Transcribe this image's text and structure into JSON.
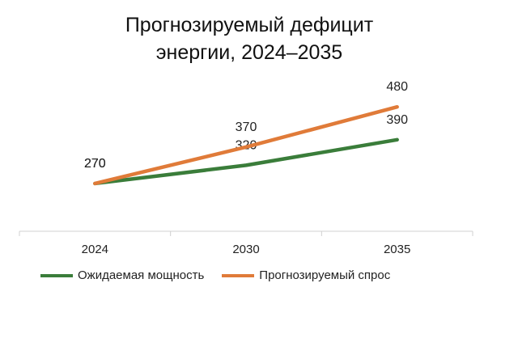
{
  "chart_data": {
    "type": "line",
    "title_line1": "Прогнозируемый дефицит",
    "title_line2": "энергии, 2024–2035",
    "categories": [
      "2024",
      "2030",
      "2035"
    ],
    "series": [
      {
        "name": "Ожидаемая мощность",
        "values": [
          270,
          320,
          390
        ],
        "color": "#3a7d3a"
      },
      {
        "name": "Прогнозируемый спрос",
        "values": [
          270,
          370,
          480
        ],
        "color": "#e07b39"
      }
    ],
    "xlabel": "",
    "ylabel": "",
    "grid": false,
    "legend": "bottom-left",
    "data_labels": true
  }
}
